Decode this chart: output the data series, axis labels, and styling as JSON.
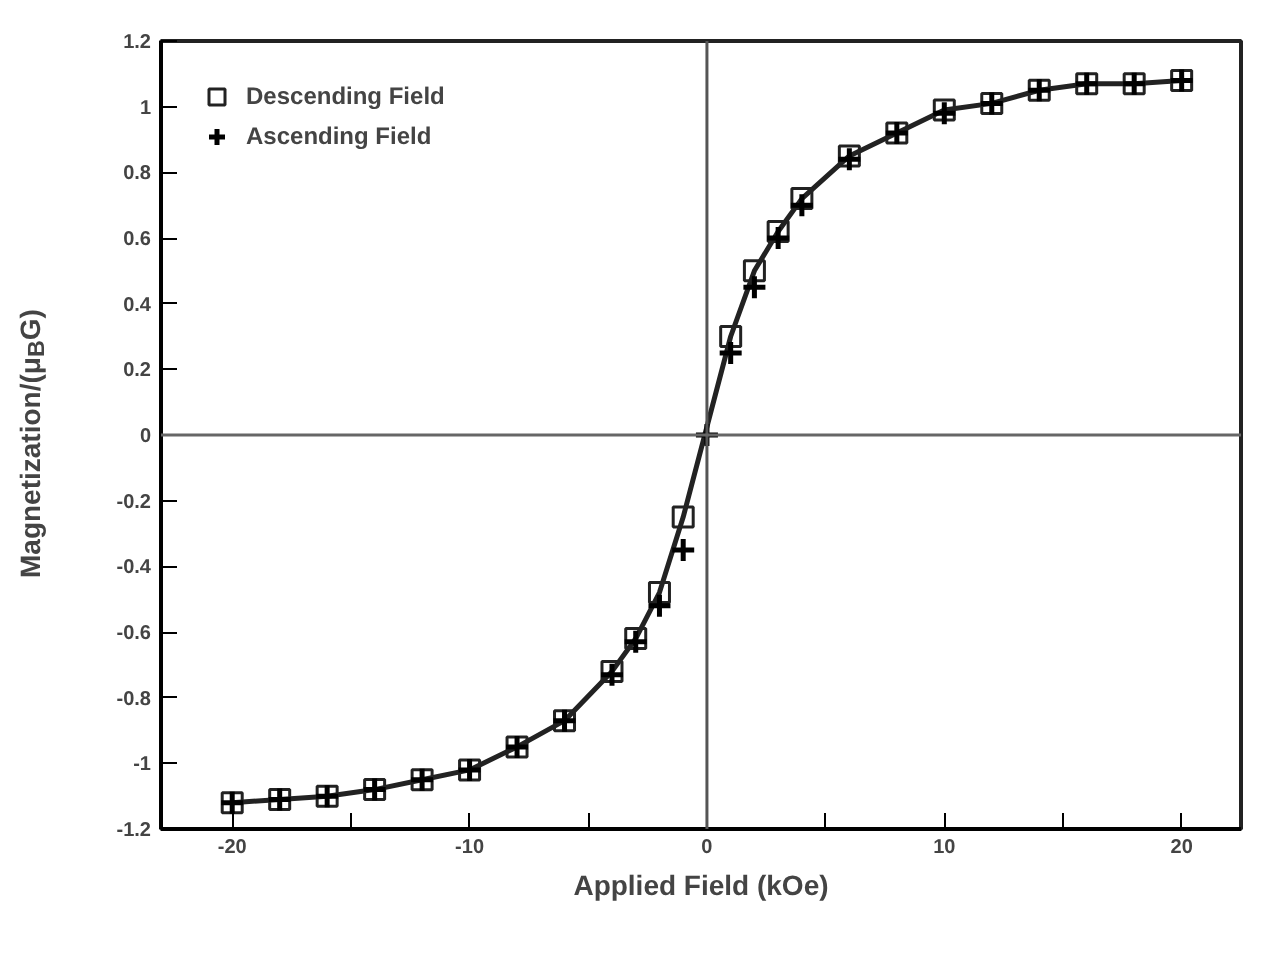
{
  "chart_data": {
    "type": "line",
    "xlabel": "Applied Field (kOe)",
    "ylabel": "Magnetization/(μ$_{B}$G)",
    "xlim": [
      -23,
      22.5
    ],
    "ylim": [
      -1.2,
      1.2
    ],
    "xticks": [
      -20,
      {
        "value": -15,
        "label": null
      },
      -10,
      {
        "value": -5,
        "label": null
      },
      0,
      {
        "value": 5,
        "label": null
      },
      10,
      {
        "value": 15,
        "label": null
      },
      20
    ],
    "yticks": [
      -1.2,
      -1,
      -0.8,
      -0.6,
      -0.4,
      -0.2,
      0,
      0.2,
      0.4,
      0.6,
      0.8,
      1,
      1.2
    ],
    "grid": false,
    "legend": "top left",
    "line_style": "solid",
    "ref_lines": [
      {
        "axis": "x",
        "value": 0,
        "color": "#555555"
      },
      {
        "axis": "y",
        "value": 0,
        "color": "#666666"
      }
    ],
    "series": [
      {
        "name": "Descending Field",
        "color": "#222222",
        "marker": "square",
        "x": [
          -20,
          -18,
          -16,
          -14,
          -12,
          -10,
          -8,
          -6,
          -4,
          -3,
          -2,
          -1,
          1,
          2,
          3,
          4,
          6,
          8,
          10,
          12,
          14,
          16,
          18,
          20
        ],
        "values": [
          -1.12,
          -1.11,
          -1.1,
          -1.08,
          -1.05,
          -1.02,
          -0.95,
          -0.87,
          -0.72,
          -0.62,
          -0.48,
          -0.25,
          0.3,
          0.5,
          0.62,
          0.72,
          0.85,
          0.92,
          0.99,
          1.01,
          1.05,
          1.07,
          1.07,
          1.08
        ]
      },
      {
        "name": "Ascending Field",
        "type": "scatter",
        "color": "#000000",
        "marker": "cross",
        "x": [
          -20,
          -18,
          -16,
          -14,
          -12,
          -10,
          -8,
          -6,
          -4,
          -3,
          -2,
          -1,
          0,
          1,
          2,
          3,
          4,
          6,
          8,
          10,
          12,
          14,
          16,
          18,
          20
        ],
        "values": [
          -1.12,
          -1.11,
          -1.1,
          -1.08,
          -1.05,
          -1.02,
          -0.95,
          -0.87,
          -0.73,
          -0.63,
          -0.52,
          -0.35,
          0,
          0.25,
          0.45,
          0.6,
          0.7,
          0.84,
          0.92,
          0.98,
          1.01,
          1.05,
          1.07,
          1.07,
          1.08
        ]
      }
    ]
  }
}
